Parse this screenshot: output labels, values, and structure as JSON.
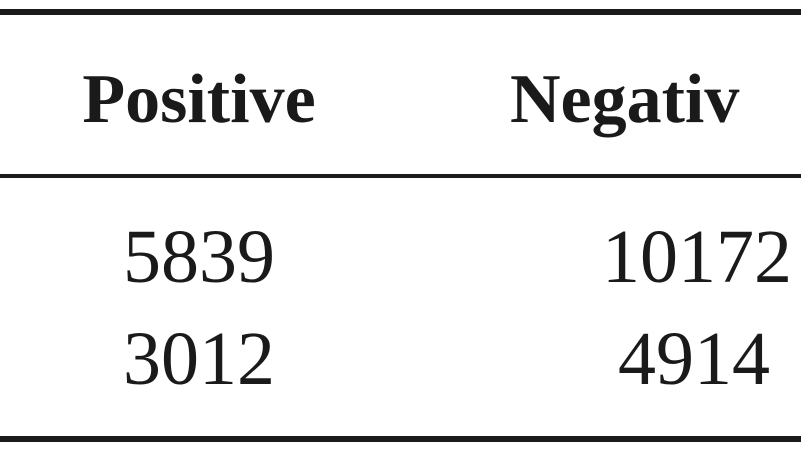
{
  "table": {
    "header": [
      "Positive",
      "Negativ"
    ],
    "rows": [
      [
        5839,
        10172
      ],
      [
        3012,
        4914
      ]
    ]
  }
}
